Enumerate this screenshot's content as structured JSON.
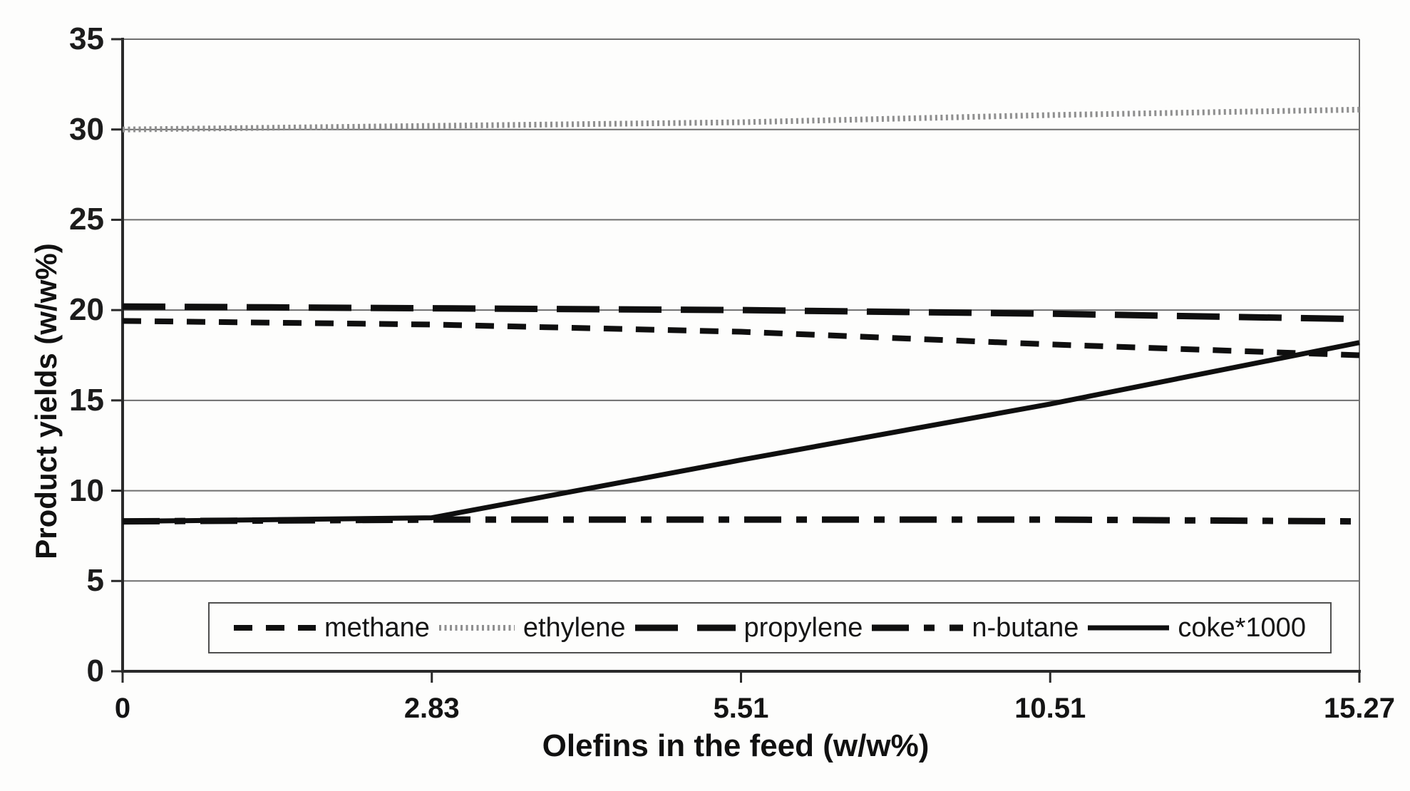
{
  "figure": {
    "background": "#fdfdfc",
    "ink_color": "#0f0f0f",
    "grid_color": "#6e6e6e",
    "ethylene_print_color": "#8f8f8f"
  },
  "chart_data": {
    "type": "line",
    "title": "",
    "xlabel": "Olefins in the feed (w/w%)",
    "ylabel": "Product yields (w/w%)",
    "categories": [
      "0",
      "2.83",
      "5.51",
      "10.51",
      "15.27"
    ],
    "x_axis_spacing": "equal (category axis)",
    "ylim": [
      0,
      35
    ],
    "y_ticks": [
      0,
      5,
      10,
      15,
      20,
      25,
      30,
      35
    ],
    "grid": "horizontal gridlines every 5 units",
    "legend_position": "bottom inside plot, horizontal box",
    "series": [
      {
        "key": "methane",
        "name": "methane",
        "style": "short-dash",
        "color": "#0f0f0f",
        "values": [
          19.4,
          19.2,
          18.8,
          18.1,
          17.5
        ]
      },
      {
        "key": "ethylene",
        "name": "ethylene",
        "style": "fine-dotted",
        "color": "#8f8f8f",
        "values": [
          30.0,
          30.2,
          30.4,
          30.8,
          31.1
        ]
      },
      {
        "key": "propylene",
        "name": "propylene",
        "style": "long-dash",
        "color": "#0f0f0f",
        "values": [
          20.2,
          20.1,
          20.0,
          19.8,
          19.5
        ]
      },
      {
        "key": "nbutane",
        "name": "n-butane",
        "style": "dash-dot",
        "color": "#0f0f0f",
        "values": [
          8.3,
          8.4,
          8.4,
          8.4,
          8.3
        ]
      },
      {
        "key": "coke",
        "name": "coke*1000",
        "style": "solid",
        "color": "#0f0f0f",
        "values": [
          8.3,
          8.5,
          11.7,
          14.8,
          18.2
        ]
      }
    ]
  }
}
